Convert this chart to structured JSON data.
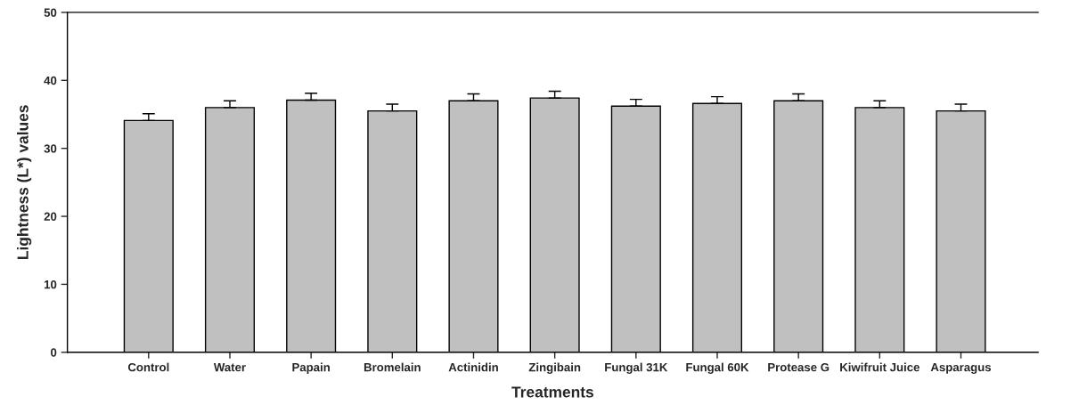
{
  "chart_data": {
    "type": "bar",
    "xlabel": "Treatments",
    "ylabel": "Lightness (L*) values",
    "categories": [
      "Control",
      "Water",
      "Papain",
      "Bromelain",
      "Actinidin",
      "Zingibain",
      "Fungal 31K",
      "Fungal 60K",
      "Protease G",
      "Kiwifruit Juice",
      "Asparagus"
    ],
    "values": [
      34.1,
      36.0,
      37.1,
      35.5,
      37.0,
      37.4,
      36.2,
      36.6,
      37.0,
      36.0,
      35.5
    ],
    "errors": [
      [
        34.1,
        35.1
      ],
      [
        36.0,
        37.0
      ],
      [
        37.1,
        38.1
      ],
      [
        35.5,
        36.5
      ],
      [
        37.0,
        38.0
      ],
      [
        37.4,
        38.4
      ],
      [
        36.2,
        37.2
      ],
      [
        36.6,
        37.6
      ],
      [
        37.0,
        38.0
      ],
      [
        36.0,
        37.0
      ],
      [
        35.5,
        36.5
      ]
    ],
    "color": "#c0c0c0",
    "ylim": [
      0,
      50
    ],
    "yticks": [
      0,
      10,
      20,
      30,
      40,
      50
    ]
  }
}
